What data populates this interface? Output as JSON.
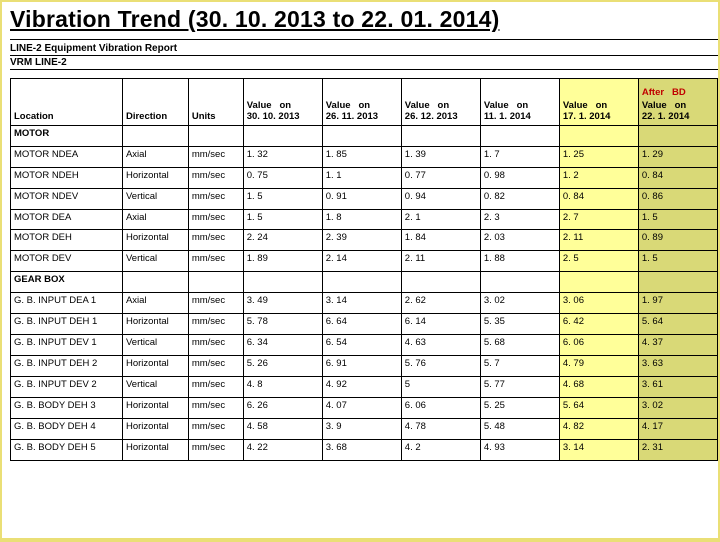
{
  "title": "Vibration Trend (30. 10. 2013 to 22. 01. 2014)",
  "subtitle1": "LINE-2 Equipment Vibration Report",
  "subtitle2": "VRM LINE-2",
  "headers": {
    "location": "Location",
    "direction": "Direction",
    "units": "Units",
    "v1a": "Value",
    "v1b": "on",
    "v1c": "30. 10. 2013",
    "v2a": "Value",
    "v2b": "on",
    "v2c": "26. 11. 2013",
    "v3a": "Value",
    "v3b": "on",
    "v3c": "26. 12. 2013",
    "v4a": "Value",
    "v4b": "on",
    "v4c": "11. 1. 2014",
    "v5a": "Value",
    "v5b": "on",
    "v5c": "17. 1. 2014",
    "bdpre": "After   BD",
    "v6a": "Value",
    "v6b": "on",
    "v6c": "22. 1. 2014"
  },
  "section1": "MOTOR",
  "section2": "GEAR BOX",
  "motor": [
    {
      "loc": "MOTOR NDEA",
      "dir": "Axial",
      "unit": "mm/sec",
      "v": [
        "1. 32",
        "1. 85",
        "1. 39",
        "1. 7",
        "1. 25",
        "1. 29"
      ]
    },
    {
      "loc": "MOTOR NDEH",
      "dir": "Horizontal",
      "unit": "mm/sec",
      "v": [
        "0. 75",
        "1. 1",
        "0. 77",
        "0. 98",
        "1. 2",
        "0. 84"
      ]
    },
    {
      "loc": "MOTOR NDEV",
      "dir": "Vertical",
      "unit": "mm/sec",
      "v": [
        "1. 5",
        "0. 91",
        "0. 94",
        "0. 82",
        "0. 84",
        "0. 86"
      ]
    },
    {
      "loc": "MOTOR DEA",
      "dir": "Axial",
      "unit": "mm/sec",
      "v": [
        "1. 5",
        "1. 8",
        "2. 1",
        "2. 3",
        "2. 7",
        "1. 5"
      ]
    },
    {
      "loc": "MOTOR DEH",
      "dir": "Horizontal",
      "unit": "mm/sec",
      "v": [
        "2. 24",
        "2. 39",
        "1. 84",
        "2. 03",
        "2. 11",
        "0. 89"
      ]
    },
    {
      "loc": "MOTOR DEV",
      "dir": "Vertical",
      "unit": "mm/sec",
      "v": [
        "1. 89",
        "2. 14",
        "2. 11",
        "1. 88",
        "2. 5",
        "1. 5"
      ]
    }
  ],
  "gearbox": [
    {
      "loc": "G. B. INPUT DEA 1",
      "dir": "Axial",
      "unit": "mm/sec",
      "v": [
        "3. 49",
        "3. 14",
        "2. 62",
        "3. 02",
        "3. 06",
        "1. 97"
      ]
    },
    {
      "loc": "G. B. INPUT DEH 1",
      "dir": "Horizontal",
      "unit": "mm/sec",
      "v": [
        "5. 78",
        "6. 64",
        "6. 14",
        "5. 35",
        "6. 42",
        "5. 64"
      ]
    },
    {
      "loc": "G. B. INPUT DEV 1",
      "dir": "Vertical",
      "unit": "mm/sec",
      "v": [
        "6. 34",
        "6. 54",
        "4. 63",
        "5. 68",
        "6. 06",
        "4. 37"
      ]
    },
    {
      "loc": "G. B. INPUT DEH 2",
      "dir": "Horizontal",
      "unit": "mm/sec",
      "v": [
        "5. 26",
        "6. 91",
        "5. 76",
        "5. 7",
        "4. 79",
        "3. 63"
      ]
    },
    {
      "loc": "G. B. INPUT DEV 2",
      "dir": "Vertical",
      "unit": "mm/sec",
      "v": [
        "4. 8",
        "4. 92",
        "5",
        "5. 77",
        "4. 68",
        "3. 61"
      ]
    },
    {
      "loc": "G. B. BODY DEH 3",
      "dir": "Horizontal",
      "unit": "mm/sec",
      "v": [
        "6. 26",
        "4. 07",
        "6. 06",
        "5. 25",
        "5. 64",
        "3. 02"
      ]
    },
    {
      "loc": "G. B. BODY DEH 4",
      "dir": "Horizontal",
      "unit": "mm/sec",
      "v": [
        "4. 58",
        "3. 9",
        "4. 78",
        "5. 48",
        "4. 82",
        "4. 17"
      ]
    },
    {
      "loc": "G. B. BODY DEH 5",
      "dir": "Horizontal",
      "unit": "mm/sec",
      "v": [
        "4. 22",
        "3. 68",
        "4. 2",
        "4. 93",
        "3. 14",
        "2. 31"
      ]
    }
  ]
}
